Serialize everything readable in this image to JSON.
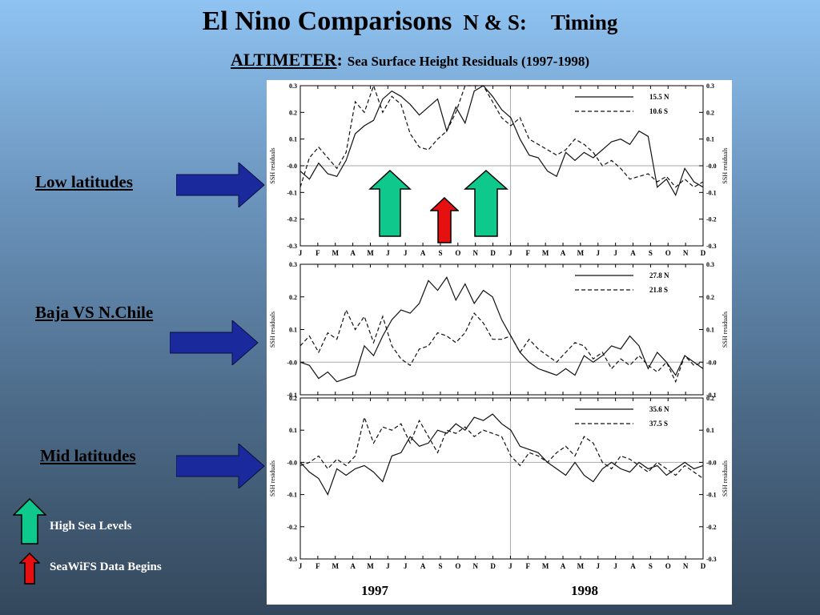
{
  "slide": {
    "title_main": "El Nino Comparisons",
    "title_sub": "N & S:",
    "title_timing": "Timing",
    "subtitle_instrument": "ALTIMETER",
    "subtitle_colon": ":",
    "subtitle_rest": "Sea Surface Height Residuals (1997-1998)"
  },
  "row_labels": [
    "Low latitudes",
    "Baja  VS N.Chile",
    "Mid latitudes"
  ],
  "legend": {
    "high_sea_levels": "High Sea Levels",
    "seawifs_begins": "SeaWiFS Data Begins"
  },
  "colors": {
    "arrow_blue": "#1a2a9c",
    "arrow_green": "#0ec88c",
    "arrow_red": "#e61010",
    "panel_bg": "#ffffff"
  },
  "icons": [
    "right-arrow-icon",
    "up-arrow-icon"
  ],
  "chart_data": [
    {
      "type": "line",
      "ylabel": "SSH residuals",
      "ylim": [
        -0.3,
        0.3
      ],
      "yticks": [
        "0.3",
        "0.2",
        "0.1",
        "-0.0",
        "-0.1",
        "-0.2",
        "-0.3"
      ],
      "x_tick_labels": [
        "J",
        "F",
        "M",
        "A",
        "M",
        "J",
        "J",
        "A",
        "S",
        "O",
        "N",
        "D",
        "J",
        "F",
        "M",
        "A",
        "M",
        "J",
        "J",
        "A",
        "S",
        "O",
        "N",
        "D"
      ],
      "series": [
        {
          "name": "15.5 N",
          "style": "solid",
          "values": [
            -0.02,
            -0.05,
            0.01,
            -0.03,
            -0.04,
            0.02,
            0.12,
            0.15,
            0.17,
            0.25,
            0.28,
            0.26,
            0.23,
            0.19,
            0.22,
            0.25,
            0.13,
            0.22,
            0.16,
            0.28,
            0.35,
            0.26,
            0.21,
            0.18,
            0.1,
            0.04,
            0.03,
            -0.02,
            -0.04,
            0.05,
            0.02,
            0.05,
            0.03,
            0.06,
            0.09,
            0.1,
            0.08,
            0.13,
            0.11,
            -0.08,
            -0.05,
            -0.11,
            -0.01,
            -0.06,
            -0.08
          ]
        },
        {
          "name": "10.6 S",
          "style": "dashed",
          "values": [
            -0.08,
            0.03,
            0.07,
            0.03,
            -0.01,
            0.05,
            0.24,
            0.2,
            0.3,
            0.2,
            0.26,
            0.23,
            0.12,
            0.07,
            0.06,
            0.1,
            0.13,
            0.2,
            0.31,
            0.33,
            0.3,
            0.24,
            0.18,
            0.15,
            0.18,
            0.1,
            0.08,
            0.06,
            0.04,
            0.06,
            0.1,
            0.08,
            0.05,
            0.0,
            0.02,
            -0.01,
            -0.05,
            -0.04,
            -0.03,
            -0.06,
            -0.04,
            -0.08,
            -0.05,
            -0.08,
            -0.06
          ]
        }
      ]
    },
    {
      "type": "line",
      "ylabel": "SSH residuals",
      "ylim": [
        -0.1,
        0.3
      ],
      "yticks": [
        "0.3",
        "0.2",
        "0.1",
        "-0.0",
        "-0.1"
      ],
      "x_tick_labels": [],
      "series": [
        {
          "name": "27.8 N",
          "style": "solid",
          "values": [
            0.0,
            -0.01,
            -0.05,
            -0.03,
            -0.06,
            -0.05,
            -0.04,
            0.05,
            0.02,
            0.08,
            0.13,
            0.16,
            0.15,
            0.18,
            0.25,
            0.22,
            0.26,
            0.19,
            0.24,
            0.18,
            0.22,
            0.2,
            0.13,
            0.08,
            0.03,
            0.0,
            -0.02,
            -0.03,
            -0.04,
            -0.02,
            -0.04,
            0.02,
            0.0,
            0.02,
            0.05,
            0.04,
            0.08,
            0.05,
            -0.02,
            0.03,
            0.0,
            -0.04,
            0.02,
            0.0,
            -0.02
          ]
        },
        {
          "name": "21.8 S",
          "style": "dashed",
          "values": [
            0.05,
            0.08,
            0.03,
            0.09,
            0.07,
            0.16,
            0.1,
            0.14,
            0.06,
            0.14,
            0.05,
            0.01,
            -0.01,
            0.04,
            0.05,
            0.09,
            0.08,
            0.06,
            0.09,
            0.15,
            0.12,
            0.07,
            0.07,
            0.08,
            0.03,
            0.07,
            0.04,
            0.02,
            0.0,
            0.03,
            0.06,
            0.05,
            0.01,
            0.03,
            -0.02,
            0.01,
            -0.01,
            0.02,
            -0.01,
            -0.03,
            0.0,
            -0.06,
            0.02,
            -0.01,
            0.0
          ]
        }
      ]
    },
    {
      "type": "line",
      "ylabel": "SSH residuals",
      "ylim": [
        -0.3,
        0.2
      ],
      "yticks": [
        "0.2",
        "0.1",
        "-0.0",
        "-0.1",
        "-0.2",
        "-0.3"
      ],
      "x_tick_labels": [
        "J",
        "F",
        "M",
        "A",
        "M",
        "J",
        "J",
        "A",
        "S",
        "O",
        "N",
        "D",
        "J",
        "F",
        "M",
        "A",
        "M",
        "J",
        "J",
        "A",
        "S",
        "O",
        "N",
        "D"
      ],
      "series": [
        {
          "name": "35.6 N",
          "style": "solid",
          "values": [
            0.0,
            -0.03,
            -0.05,
            -0.1,
            -0.02,
            -0.04,
            -0.02,
            -0.01,
            -0.03,
            -0.06,
            0.02,
            0.03,
            0.08,
            0.05,
            0.06,
            0.1,
            0.09,
            0.12,
            0.1,
            0.14,
            0.13,
            0.15,
            0.12,
            0.1,
            0.05,
            0.04,
            0.03,
            0.0,
            -0.02,
            -0.04,
            0.0,
            -0.04,
            -0.06,
            -0.02,
            0.0,
            -0.02,
            -0.03,
            0.0,
            -0.02,
            -0.01,
            -0.04,
            -0.02,
            0.0,
            -0.02,
            -0.01
          ]
        },
        {
          "name": "37.5 S",
          "style": "dashed",
          "values": [
            -0.01,
            0.0,
            0.02,
            -0.02,
            0.01,
            -0.01,
            0.02,
            0.14,
            0.06,
            0.11,
            0.1,
            0.12,
            0.06,
            0.13,
            0.08,
            0.03,
            0.1,
            0.09,
            0.11,
            0.08,
            0.1,
            0.09,
            0.08,
            0.02,
            -0.01,
            0.03,
            0.02,
            0.0,
            0.03,
            0.05,
            0.02,
            0.08,
            0.06,
            0.0,
            -0.02,
            0.02,
            0.01,
            -0.01,
            -0.03,
            0.0,
            -0.02,
            -0.04,
            -0.01,
            -0.03,
            -0.05
          ]
        }
      ]
    }
  ],
  "year_labels": [
    "1997",
    "1998"
  ]
}
